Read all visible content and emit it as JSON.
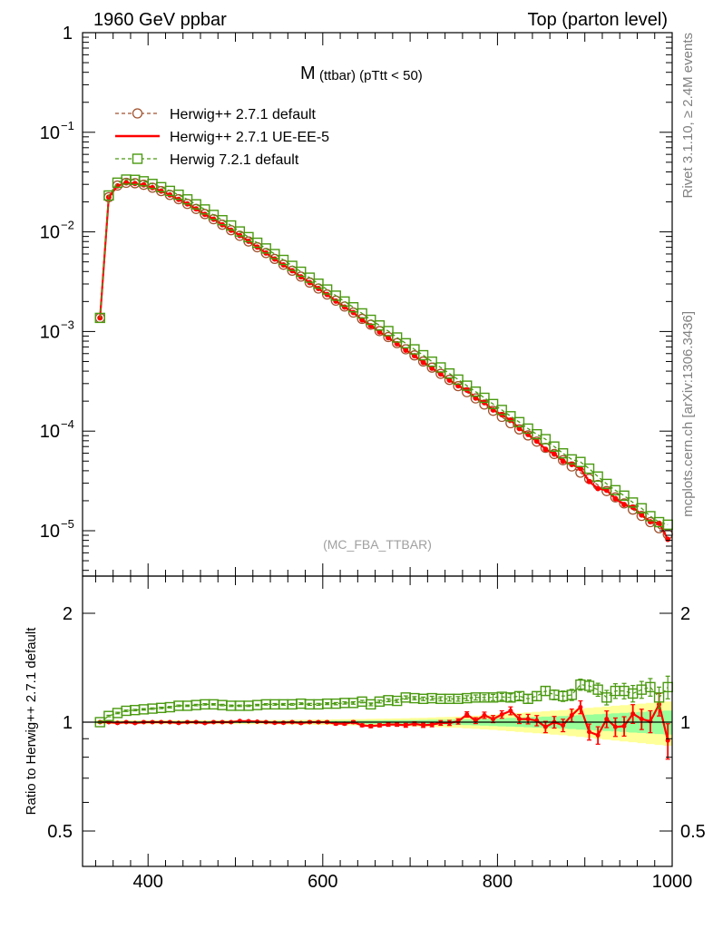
{
  "header": {
    "left": "1960 GeV ppbar",
    "right": "Top (parton level)"
  },
  "side": {
    "rivet": "Rivet 3.1.10, ≥ 2.4M events",
    "mcplots": "mcplots.cern.ch [arXiv:1306.3436]"
  },
  "chart_data": [
    {
      "type": "line",
      "title": "M",
      "title_sub": "(ttbar) (pTtt < 50)",
      "watermark": "(MC_FBA_TTBAR)",
      "yscale": "log",
      "xlim": [
        325,
        1000
      ],
      "ylim": [
        3e-06,
        1
      ],
      "y_tick_labels": [
        "1",
        "10^-1",
        "10^-2",
        "10^-3",
        "10^-4",
        "10^-5"
      ],
      "legend_placement": "top-left",
      "series": [
        {
          "name": "Herwig++ 2.7.1 default",
          "color": "#a0522d",
          "style": "dashed-circle",
          "x": [
            345,
            355,
            365,
            375,
            385,
            395,
            405,
            415,
            425,
            435,
            445,
            455,
            465,
            475,
            485,
            495,
            505,
            515,
            525,
            535,
            545,
            555,
            565,
            575,
            585,
            595,
            605,
            615,
            625,
            635,
            645,
            655,
            665,
            675,
            685,
            695,
            705,
            715,
            725,
            735,
            745,
            755,
            765,
            775,
            785,
            795,
            805,
            815,
            825,
            835,
            845,
            855,
            865,
            875,
            885,
            895,
            905,
            915,
            925,
            935,
            945,
            955,
            965,
            975,
            985,
            995
          ],
          "y": [
            0.00137,
            0.0223,
            0.0292,
            0.0311,
            0.0308,
            0.0297,
            0.0278,
            0.0257,
            0.0235,
            0.0213,
            0.0191,
            0.017,
            0.0151,
            0.0134,
            0.0118,
            0.0104,
            0.00913,
            0.00801,
            0.00701,
            0.00613,
            0.00536,
            0.00468,
            0.00408,
            0.00356,
            0.0031,
            0.0027,
            0.00235,
            0.00204,
            0.00178,
            0.00155,
            0.00134,
            0.00117,
            0.00101,
            0.00088,
            0.000764,
            0.000663,
            0.000576,
            0.0005,
            0.000434,
            0.000376,
            0.000327,
            0.000283,
            0.000246,
            0.000213,
            0.000185,
            0.00016,
            0.000139,
            0.00012,
            0.000104,
            9.05e-05,
            7.84e-05,
            6.79e-05,
            5.89e-05,
            5.1e-05,
            4.42e-05,
            3.83e-05,
            3.32e-05,
            2.88e-05,
            2.5e-05,
            2.16e-05,
            1.88e-05,
            1.63e-05,
            1.41e-05,
            1.22e-05,
            1.06e-05,
            9.2e-06
          ]
        },
        {
          "name": "Herwig++ 2.7.1 UE-EE-5",
          "color": "#ff0000",
          "style": "solid-dot",
          "x": [
            345,
            355,
            365,
            375,
            385,
            395,
            405,
            415,
            425,
            435,
            445,
            455,
            465,
            475,
            485,
            495,
            505,
            515,
            525,
            535,
            545,
            555,
            565,
            575,
            585,
            595,
            605,
            615,
            625,
            635,
            645,
            655,
            665,
            675,
            685,
            695,
            705,
            715,
            725,
            735,
            745,
            755,
            765,
            775,
            785,
            795,
            805,
            815,
            825,
            835,
            845,
            855,
            865,
            875,
            885,
            895,
            905,
            915,
            925,
            935,
            945,
            955,
            965,
            975,
            985,
            995
          ],
          "y": [
            0.00137,
            0.0223,
            0.029,
            0.0311,
            0.0306,
            0.0297,
            0.0278,
            0.0257,
            0.0235,
            0.0212,
            0.0191,
            0.017,
            0.015,
            0.0134,
            0.0118,
            0.0104,
            0.0092,
            0.00806,
            0.00703,
            0.00613,
            0.00534,
            0.00466,
            0.00408,
            0.00354,
            0.0031,
            0.0027,
            0.00235,
            0.00202,
            0.00176,
            0.00155,
            0.00131,
            0.00114,
            0.00099,
            0.000867,
            0.000753,
            0.00065,
            0.000571,
            0.00049,
            0.000428,
            0.000374,
            0.000325,
            0.000285,
            0.000258,
            0.000215,
            0.000193,
            0.000163,
            0.000146,
            0.000129,
            0.000106,
            9.26e-05,
            7.93e-05,
            6.57e-05,
            5.89e-05,
            4.99e-05,
            4.62e-05,
            4.21e-05,
            3.12e-05,
            2.65e-05,
            2.55e-05,
            2.1e-05,
            1.83e-05,
            1.72e-05,
            1.44e-05,
            1.23e-05,
            1.19e-05,
            8.2e-06
          ]
        },
        {
          "name": "Herwig 7.2.1 default",
          "color": "#4a9a10",
          "style": "dashed-square",
          "x": [
            345,
            355,
            365,
            375,
            385,
            395,
            405,
            415,
            425,
            435,
            445,
            455,
            465,
            475,
            485,
            495,
            505,
            515,
            525,
            535,
            545,
            555,
            565,
            575,
            585,
            595,
            605,
            615,
            625,
            635,
            645,
            655,
            665,
            675,
            685,
            695,
            705,
            715,
            725,
            735,
            745,
            755,
            765,
            775,
            785,
            795,
            805,
            815,
            825,
            835,
            845,
            855,
            865,
            875,
            885,
            895,
            905,
            915,
            925,
            935,
            945,
            955,
            965,
            975,
            985,
            995
          ],
          "y": [
            0.00137,
            0.0232,
            0.0312,
            0.0335,
            0.0333,
            0.0322,
            0.0303,
            0.0281,
            0.0258,
            0.0236,
            0.0212,
            0.0189,
            0.0168,
            0.0148,
            0.0131,
            0.0116,
            0.0101,
            0.00886,
            0.00778,
            0.00682,
            0.00599,
            0.00523,
            0.00456,
            0.00398,
            0.00347,
            0.00302,
            0.00264,
            0.00229,
            0.002,
            0.00175,
            0.00152,
            0.00131,
            0.00115,
            0.00101,
            0.000871,
            0.000762,
            0.000662,
            0.000578,
            0.000498,
            0.000436,
            0.000379,
            0.000329,
            0.000286,
            0.000249,
            0.000216,
            0.000187,
            0.000163,
            0.000141,
            0.000123,
            0.000106,
            9.3e-05,
            8.3e-05,
            7e-05,
            5.98e-05,
            5.2e-05,
            4.9e-05,
            4.2e-05,
            3.5e-05,
            2.95e-05,
            2.55e-05,
            2.25e-05,
            1.92e-05,
            1.68e-05,
            1.4e-05,
            1.22e-05,
            1.15e-05
          ]
        }
      ]
    },
    {
      "type": "line",
      "ylabel": "Ratio to Herwig++ 2.7.1 default",
      "xlim": [
        325,
        1000
      ],
      "ylim": [
        0.4,
        2.4
      ],
      "x_tick_labels": [
        "400",
        "600",
        "800",
        "1000"
      ],
      "y_tick_labels": [
        "2",
        "1",
        "0.5"
      ],
      "reference_line": 1,
      "band_yellow_halfwidth": [
        0.012,
        0.012,
        0.012,
        0.012,
        0.012,
        0.012,
        0.012,
        0.012,
        0.012,
        0.012,
        0.012,
        0.012,
        0.012,
        0.012,
        0.012,
        0.012,
        0.012,
        0.013,
        0.013,
        0.013,
        0.014,
        0.014,
        0.015,
        0.015,
        0.016,
        0.017,
        0.017,
        0.018,
        0.019,
        0.02,
        0.02,
        0.021,
        0.022,
        0.023,
        0.024,
        0.025,
        0.027,
        0.028,
        0.03,
        0.032,
        0.034,
        0.036,
        0.039,
        0.042,
        0.045,
        0.048,
        0.052,
        0.056,
        0.06,
        0.064,
        0.068,
        0.072,
        0.076,
        0.08,
        0.085,
        0.09,
        0.095,
        0.1,
        0.105,
        0.11,
        0.115,
        0.12,
        0.125,
        0.13,
        0.135,
        0.14
      ],
      "band_green_halfwidth": [
        0.006,
        0.006,
        0.006,
        0.006,
        0.006,
        0.006,
        0.006,
        0.006,
        0.006,
        0.006,
        0.006,
        0.006,
        0.006,
        0.006,
        0.006,
        0.006,
        0.006,
        0.006,
        0.006,
        0.006,
        0.006,
        0.007,
        0.007,
        0.007,
        0.008,
        0.008,
        0.008,
        0.009,
        0.009,
        0.01,
        0.01,
        0.011,
        0.011,
        0.012,
        0.012,
        0.013,
        0.013,
        0.014,
        0.015,
        0.016,
        0.017,
        0.018,
        0.019,
        0.02,
        0.022,
        0.024,
        0.026,
        0.028,
        0.03,
        0.032,
        0.034,
        0.036,
        0.038,
        0.04,
        0.043,
        0.046,
        0.049,
        0.052,
        0.055,
        0.058,
        0.061,
        0.064,
        0.067,
        0.07,
        0.073,
        0.076
      ],
      "series": [
        {
          "name": "Herwig++ 2.7.1 UE-EE-5",
          "color": "#ff0000",
          "x": [
            345,
            355,
            365,
            375,
            385,
            395,
            405,
            415,
            425,
            435,
            445,
            455,
            465,
            475,
            485,
            495,
            505,
            515,
            525,
            535,
            545,
            555,
            565,
            575,
            585,
            595,
            605,
            615,
            625,
            635,
            645,
            655,
            665,
            675,
            685,
            695,
            705,
            715,
            725,
            735,
            745,
            755,
            765,
            775,
            785,
            795,
            805,
            815,
            825,
            835,
            845,
            855,
            865,
            875,
            885,
            895,
            905,
            915,
            925,
            935,
            945,
            955,
            965,
            975,
            985,
            995
          ],
          "y": [
            1.0,
            1.0,
            0.995,
            1.0,
            0.994,
            1.0,
            1.0,
            1.0,
            1.0,
            0.995,
            1.0,
            1.0,
            0.994,
            1.0,
            1.0,
            1.0,
            1.007,
            1.006,
            1.003,
            1.0,
            0.996,
            0.996,
            1.0,
            0.994,
            1.0,
            1.0,
            1.0,
            0.99,
            0.99,
            1.0,
            0.98,
            0.975,
            0.98,
            0.985,
            0.985,
            0.98,
            0.99,
            0.98,
            0.985,
            0.995,
            0.995,
            1.005,
            1.05,
            1.01,
            1.045,
            1.02,
            1.05,
            1.075,
            1.02,
            1.02,
            1.01,
            0.97,
            1.0,
            0.98,
            1.045,
            1.1,
            0.94,
            0.92,
            1.02,
            0.97,
            0.975,
            1.055,
            1.02,
            1.005,
            1.12,
            0.89
          ],
          "err": [
            0.005,
            0.005,
            0.005,
            0.005,
            0.005,
            0.005,
            0.005,
            0.005,
            0.005,
            0.005,
            0.005,
            0.005,
            0.005,
            0.005,
            0.005,
            0.005,
            0.005,
            0.005,
            0.005,
            0.005,
            0.006,
            0.006,
            0.006,
            0.006,
            0.007,
            0.007,
            0.007,
            0.008,
            0.008,
            0.009,
            0.009,
            0.01,
            0.01,
            0.011,
            0.011,
            0.012,
            0.012,
            0.013,
            0.014,
            0.015,
            0.016,
            0.017,
            0.018,
            0.019,
            0.021,
            0.023,
            0.025,
            0.027,
            0.029,
            0.031,
            0.033,
            0.035,
            0.037,
            0.039,
            0.042,
            0.045,
            0.048,
            0.051,
            0.054,
            0.057,
            0.06,
            0.063,
            0.066,
            0.07,
            0.08,
            0.1
          ]
        },
        {
          "name": "Herwig 7.2.1 default",
          "color": "#4a9a10",
          "x": [
            345,
            355,
            365,
            375,
            385,
            395,
            405,
            415,
            425,
            435,
            445,
            455,
            465,
            475,
            485,
            495,
            505,
            515,
            525,
            535,
            545,
            555,
            565,
            575,
            585,
            595,
            605,
            615,
            625,
            635,
            645,
            655,
            665,
            675,
            685,
            695,
            705,
            715,
            725,
            735,
            745,
            755,
            765,
            775,
            785,
            795,
            805,
            815,
            825,
            835,
            845,
            855,
            865,
            875,
            885,
            895,
            905,
            915,
            925,
            935,
            945,
            955,
            965,
            975,
            985,
            995
          ],
          "y": [
            1.0,
            1.04,
            1.06,
            1.075,
            1.08,
            1.085,
            1.09,
            1.095,
            1.1,
            1.11,
            1.11,
            1.115,
            1.12,
            1.12,
            1.115,
            1.11,
            1.11,
            1.11,
            1.115,
            1.12,
            1.12,
            1.12,
            1.12,
            1.125,
            1.12,
            1.12,
            1.125,
            1.125,
            1.13,
            1.13,
            1.14,
            1.12,
            1.14,
            1.15,
            1.145,
            1.17,
            1.165,
            1.16,
            1.165,
            1.16,
            1.16,
            1.16,
            1.165,
            1.17,
            1.17,
            1.17,
            1.175,
            1.17,
            1.18,
            1.16,
            1.18,
            1.22,
            1.19,
            1.18,
            1.19,
            1.27,
            1.26,
            1.23,
            1.17,
            1.22,
            1.22,
            1.2,
            1.23,
            1.25,
            1.17,
            1.25
          ],
          "err": [
            0.005,
            0.005,
            0.005,
            0.005,
            0.005,
            0.005,
            0.005,
            0.005,
            0.005,
            0.005,
            0.005,
            0.005,
            0.005,
            0.005,
            0.005,
            0.005,
            0.005,
            0.005,
            0.005,
            0.005,
            0.006,
            0.006,
            0.006,
            0.006,
            0.007,
            0.007,
            0.007,
            0.008,
            0.008,
            0.009,
            0.009,
            0.01,
            0.01,
            0.011,
            0.011,
            0.012,
            0.012,
            0.013,
            0.014,
            0.015,
            0.016,
            0.017,
            0.018,
            0.019,
            0.021,
            0.023,
            0.025,
            0.027,
            0.029,
            0.031,
            0.033,
            0.035,
            0.037,
            0.039,
            0.042,
            0.045,
            0.048,
            0.051,
            0.054,
            0.057,
            0.06,
            0.063,
            0.066,
            0.07,
            0.08,
            0.09
          ]
        }
      ]
    }
  ]
}
